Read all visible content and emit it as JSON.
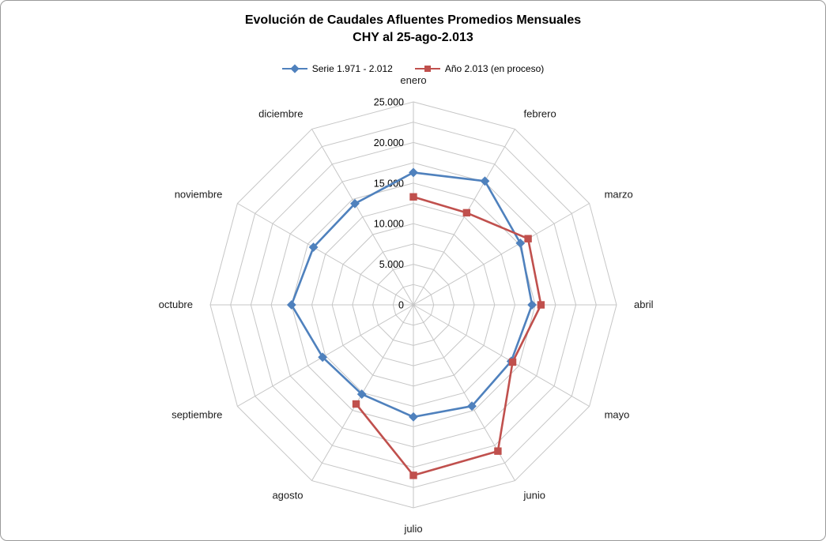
{
  "title": {
    "line1": "Evolución de Caudales Afluentes Promedios Mensuales",
    "line2": "CHY al 25-ago-2.013"
  },
  "legend": {
    "items": [
      {
        "label": "Serie 1.971 - 2.012",
        "color": "#4F81BD",
        "marker": "diamond"
      },
      {
        "label": "Año 2.013 (en proceso)",
        "color": "#C0504D",
        "marker": "square"
      }
    ]
  },
  "chart_data": {
    "type": "radar",
    "title": "Evolución de Caudales Afluentes Promedios Mensuales CHY al 25-ago-2.013",
    "categories": [
      "enero",
      "febrero",
      "marzo",
      "abril",
      "mayo",
      "junio",
      "julio",
      "agosto",
      "septiembre",
      "octubre",
      "noviembre",
      "diciembre"
    ],
    "series": [
      {
        "name": "Serie 1.971 - 2.012",
        "color": "#4F81BD",
        "marker": "diamond",
        "closed": true,
        "values": [
          16300,
          17600,
          15200,
          14600,
          13900,
          14400,
          13800,
          12700,
          12900,
          15000,
          14200,
          14400
        ]
      },
      {
        "name": "Año 2.013 (en proceso)",
        "color": "#C0504D",
        "marker": "square",
        "closed": false,
        "values": [
          13300,
          13100,
          16300,
          15700,
          14100,
          20800,
          21000,
          14100,
          null,
          null,
          null,
          null
        ]
      }
    ],
    "radial_axis": {
      "min": 0,
      "max": 25000,
      "major_unit": 5000,
      "grid_unit": 2500,
      "tick_labels": [
        "0",
        "5.000",
        "10.000",
        "15.000",
        "20.000",
        "25.000"
      ]
    },
    "grid": true,
    "legend_position": "top",
    "grid_color": "#C6C6C6",
    "category_label_color": "#1a1a1a",
    "tick_label_color": "#000000"
  }
}
